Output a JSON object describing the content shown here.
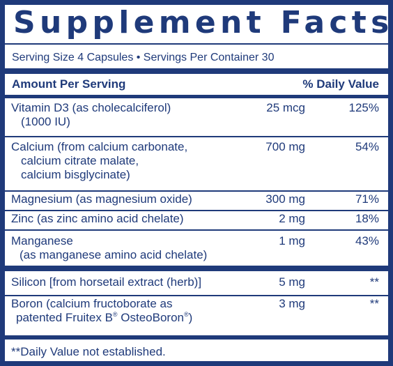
{
  "title": "Supplement Facts",
  "serving_line": "Serving Size 4 Capsules • Servings Per Container 30",
  "header": {
    "amount": "Amount Per Serving",
    "dv": "% Daily Value"
  },
  "nutrients": [
    {
      "line1": "Vitamin D3 (as cholecalciferol)",
      "line2": "(1000 IU)",
      "amount": "25 mcg",
      "dv": "125%"
    },
    {
      "line1": "Calcium (from calcium carbonate,",
      "line2": "calcium citrate malate,",
      "line3": "calcium bisglycinate)",
      "amount": "700 mg",
      "dv": "54%"
    },
    {
      "line1": "Magnesium (as magnesium oxide)",
      "amount": "300 mg",
      "dv": "71%"
    },
    {
      "line1": "Zinc (as zinc amino acid chelate)",
      "amount": "2 mg",
      "dv": "18%"
    },
    {
      "line1": "Manganese",
      "line2": "(as manganese amino acid chelate)",
      "amount": "1 mg",
      "dv": "43%"
    }
  ],
  "other": [
    {
      "line1": "Silicon [from horsetail extract (herb)]",
      "amount": "5 mg",
      "dv": "**"
    },
    {
      "line1": "Boron (calcium fructoborate as",
      "line2a": "patented Fruitex B",
      "reg1": "®",
      "line2b": " OsteoBoron",
      "reg2": "®",
      "line2c": ")",
      "amount": "3 mg",
      "dv": "**"
    }
  ],
  "footnote": "**Daily Value not established.",
  "colors": {
    "brand": "#1f3a7a",
    "background": "#ffffff"
  }
}
